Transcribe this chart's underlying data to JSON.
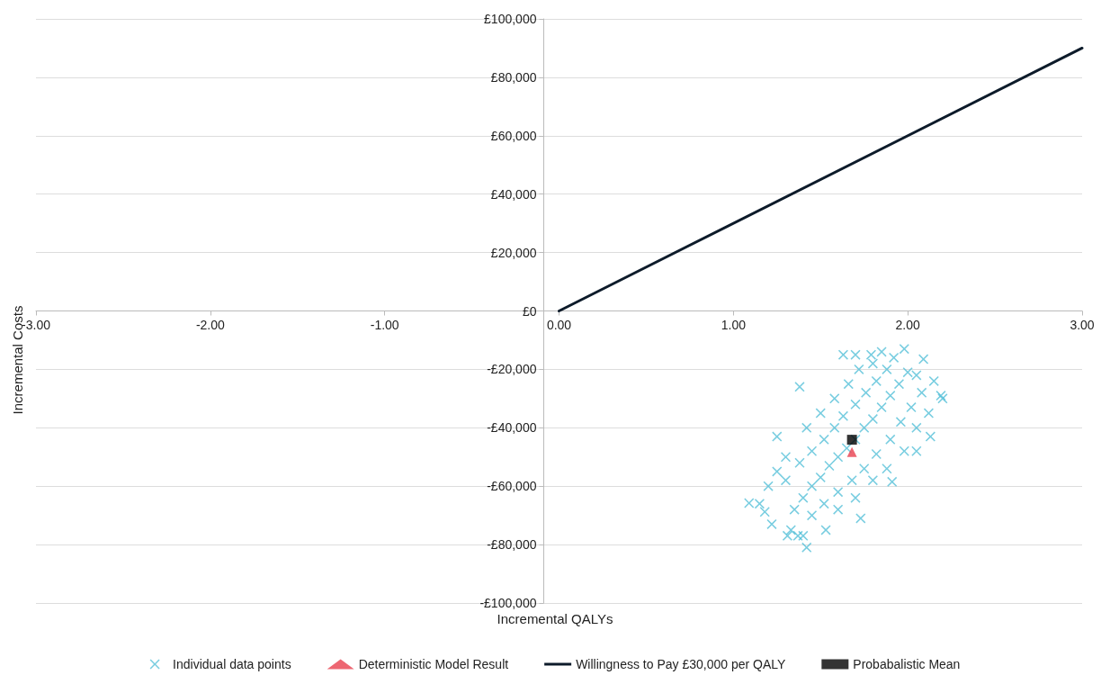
{
  "chart_data": {
    "type": "scatter",
    "xlabel": "Incremental QALYs",
    "ylabel": "Incremental Costs",
    "xlim": [
      -3,
      3
    ],
    "xticks": [
      {
        "value": -3,
        "label": "-3.00"
      },
      {
        "value": -2,
        "label": "-2.00"
      },
      {
        "value": -1,
        "label": "-1.00"
      },
      {
        "value": 0,
        "label": "0.00"
      },
      {
        "value": 1,
        "label": "1.00"
      },
      {
        "value": 2,
        "label": "2.00"
      },
      {
        "value": 3,
        "label": "3.00"
      }
    ],
    "ylim": [
      -100000,
      100000
    ],
    "yticks": [
      {
        "value": -100000,
        "label": "-£100,000"
      },
      {
        "value": -80000,
        "label": "-£80,000"
      },
      {
        "value": -60000,
        "label": "-£60,000"
      },
      {
        "value": -40000,
        "label": "-£40,000"
      },
      {
        "value": -20000,
        "label": "-£20,000"
      },
      {
        "value": 0,
        "label": "£0"
      },
      {
        "value": 20000,
        "label": "£20,000"
      },
      {
        "value": 40000,
        "label": "£40,000"
      },
      {
        "value": 60000,
        "label": "£60,000"
      },
      {
        "value": 80000,
        "label": "£80,000"
      },
      {
        "value": 100000,
        "label": "£100,000"
      }
    ],
    "grid": "y",
    "legend": "bottom",
    "series": [
      {
        "name": "Individual data points",
        "marker": "cross",
        "color": "#4bbcd6",
        "x": [
          1.09,
          1.18,
          1.42,
          1.37,
          1.31,
          1.25,
          1.38,
          1.63,
          1.79,
          1.98,
          2.09,
          2.19,
          2.13,
          2.05,
          1.91,
          1.73,
          1.53,
          1.35,
          1.4,
          1.45,
          1.5,
          1.55,
          1.6,
          1.65,
          1.7,
          1.75,
          1.8,
          1.85,
          1.9,
          1.95,
          2.0,
          1.3,
          1.38,
          1.45,
          1.52,
          1.58,
          1.63,
          1.7,
          1.76,
          1.82,
          1.88,
          1.3,
          1.42,
          1.5,
          1.58,
          1.66,
          1.72,
          1.8,
          1.45,
          1.52,
          1.6,
          1.68,
          1.75,
          1.82,
          1.9,
          1.96,
          2.02,
          2.08,
          1.6,
          1.7,
          1.8,
          1.88,
          1.98,
          2.05,
          2.12,
          1.2,
          1.25,
          1.15,
          1.22,
          1.33,
          1.4,
          2.15,
          2.2,
          1.92,
          1.85,
          1.7,
          2.05
        ],
        "values": [
          -65800,
          -68800,
          -81000,
          -77000,
          -77000,
          -43000,
          -26000,
          -15000,
          -15000,
          -13000,
          -16500,
          -29000,
          -43000,
          -48000,
          -58500,
          -71000,
          -75000,
          -68000,
          -64000,
          -60000,
          -57000,
          -53000,
          -50000,
          -47000,
          -44000,
          -40000,
          -37000,
          -33000,
          -29000,
          -25000,
          -21000,
          -58000,
          -52000,
          -48000,
          -44000,
          -40000,
          -36000,
          -32000,
          -28000,
          -24000,
          -20000,
          -50000,
          -40000,
          -35000,
          -30000,
          -25000,
          -20000,
          -18000,
          -70000,
          -66000,
          -62000,
          -58000,
          -54000,
          -49000,
          -44000,
          -38000,
          -33000,
          -28000,
          -68000,
          -64000,
          -58000,
          -54000,
          -48000,
          -40000,
          -35000,
          -60000,
          -55000,
          -66000,
          -73000,
          -75000,
          -77000,
          -24000,
          -30000,
          -16000,
          -14000,
          -15000,
          -22000
        ]
      },
      {
        "name": "Deterministic Model Result",
        "type": "scatter",
        "marker": "triangle",
        "color": "#e8404f",
        "x": [
          1.68
        ],
        "values": [
          -48300
        ]
      },
      {
        "name": "Willingness to Pay £30,000 per QALY",
        "type": "line",
        "marker": "none",
        "color": "#0d1b2a",
        "x": [
          0,
          3
        ],
        "values": [
          0,
          90000
        ]
      },
      {
        "name": "Probabalistic Mean",
        "marker": "square",
        "color": "#000000",
        "x": [
          1.68
        ],
        "values": [
          -44100
        ]
      }
    ]
  }
}
